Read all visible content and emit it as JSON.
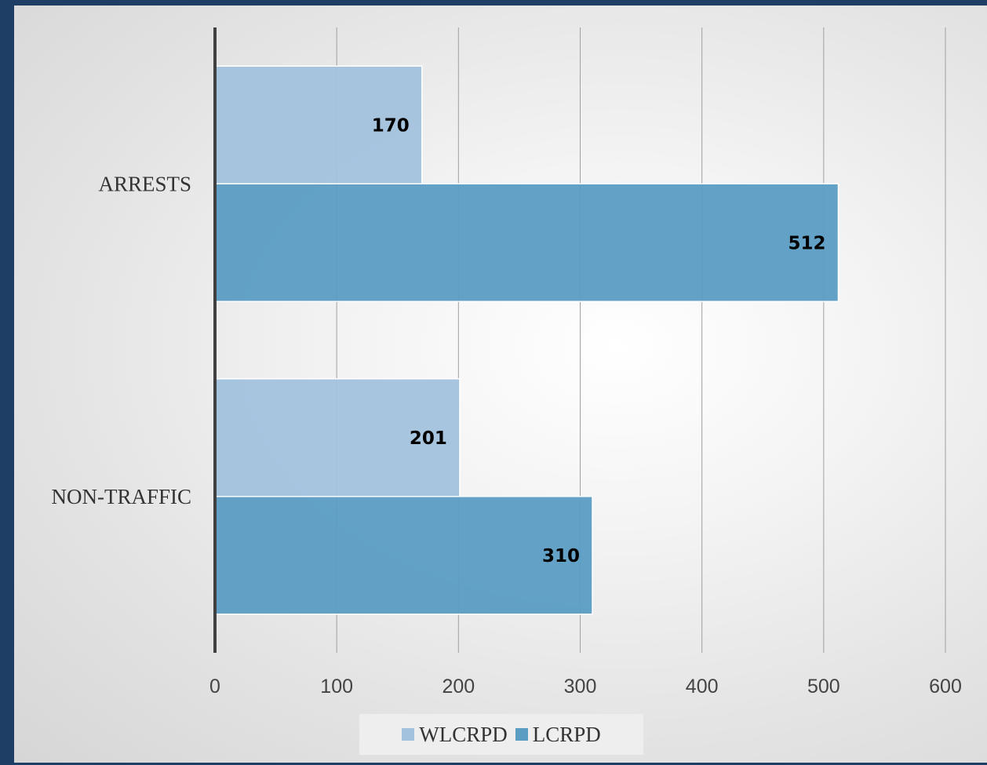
{
  "chart_data": {
    "type": "bar",
    "orientation": "horizontal",
    "categories": [
      "ARRESTS",
      "NON-TRAFFIC"
    ],
    "series": [
      {
        "name": "WLCRPD",
        "values": [
          170,
          201
        ],
        "color": "#a3c2de"
      },
      {
        "name": "LCRPD",
        "values": [
          512,
          310
        ],
        "color": "#5b9dc3"
      }
    ],
    "xlim": [
      0,
      600
    ],
    "xticks": [
      "0",
      "100",
      "200",
      "300",
      "400",
      "500",
      "600"
    ],
    "grid": true,
    "legend_position": "bottom",
    "data_labels": true
  },
  "colors": {
    "background": "#1f3e66",
    "plot_area": "#f4f4f4",
    "gridline": "#a0a0a0",
    "axis": "#404040"
  }
}
